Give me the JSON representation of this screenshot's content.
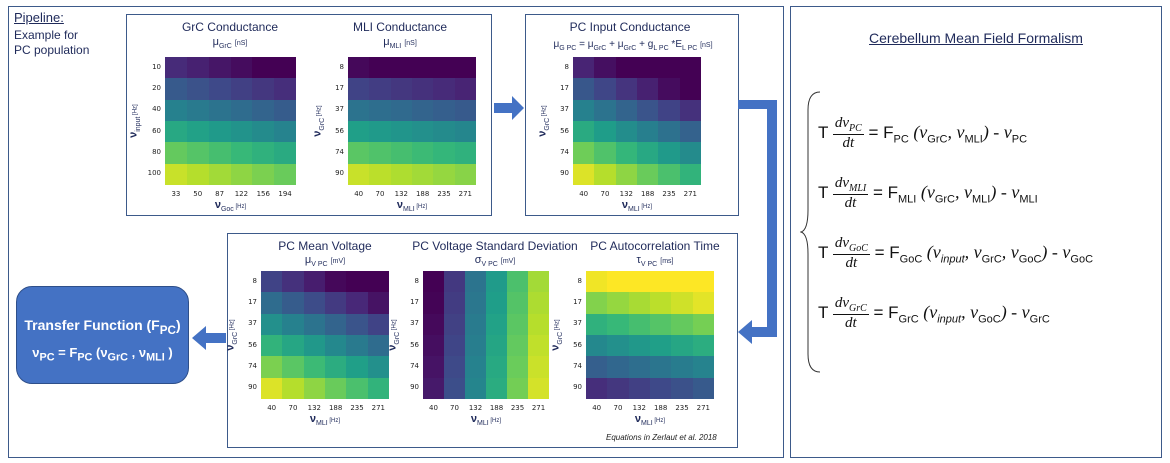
{
  "pipeline": {
    "title": "Pipeline:",
    "sub1": "Example for",
    "sub2": "PC population"
  },
  "grc": {
    "title": "GrC Conductance",
    "mu": "μ",
    "mu_sub": "GrC",
    "unit": "[nS]",
    "yticks": [
      "10",
      "20",
      "40",
      "60",
      "80",
      "100"
    ],
    "xticks": [
      "33",
      "50",
      "87",
      "122",
      "156",
      "194"
    ],
    "ylabel_sym": "ν",
    "ylabel_sub": "input",
    "ylabel_unit": "[Hz]",
    "xlabel_sym": "ν",
    "xlabel_sub": "Goc",
    "xlabel_unit": "[Hz]"
  },
  "mli": {
    "title": "MLI Conductance",
    "mu": "μ",
    "mu_sub": "MLI",
    "unit": "[nS]",
    "yticks": [
      "8",
      "17",
      "37",
      "56",
      "74",
      "90"
    ],
    "xticks": [
      "40",
      "70",
      "132",
      "188",
      "235",
      "271"
    ],
    "ylabel_sym": "ν",
    "ylabel_sub": "GrC",
    "ylabel_unit": "[Hz]",
    "xlabel_sym": "ν",
    "xlabel_sub": "MLI",
    "xlabel_unit": "[Hz]"
  },
  "pcinput": {
    "title": "PC Input Conductance",
    "formula": "μG PC = μGrC + μGrC + gL PC *EL PC",
    "f_a": "μ",
    "f_a_sub": "G PC",
    "f_eq": " = ",
    "f_b": "μ",
    "f_b_sub": "GrC",
    "f_plus1": " + ",
    "f_c": "μ",
    "f_c_sub": "GrC",
    "f_plus2": " + ",
    "f_d": "g",
    "f_d_sub": "L PC",
    "f_star": " *E",
    "f_e_sub": "L PC",
    "unit": "[nS]",
    "yticks": [
      "8",
      "17",
      "37",
      "56",
      "74",
      "90"
    ],
    "xticks": [
      "40",
      "70",
      "132",
      "188",
      "235",
      "271"
    ],
    "ylabel_sym": "ν",
    "ylabel_sub": "GrC",
    "ylabel_unit": "[Hz]",
    "xlabel_sym": "ν",
    "xlabel_sub": "MLI",
    "xlabel_unit": "[Hz]"
  },
  "meanv": {
    "title": "PC Mean Voltage",
    "mu": "μ",
    "mu_sub": "V PC",
    "unit": "[mV]",
    "yticks": [
      "8",
      "17",
      "37",
      "56",
      "74",
      "90"
    ],
    "xticks": [
      "40",
      "70",
      "132",
      "188",
      "235",
      "271"
    ],
    "ylabel_sym": "ν",
    "ylabel_sub": "GrC",
    "ylabel_unit": "[Hz]",
    "xlabel_sym": "ν",
    "xlabel_sub": "MLI",
    "xlabel_unit": "[Hz]"
  },
  "sdv": {
    "title": "PC Voltage Standard Deviation",
    "mu": "σ",
    "mu_sub": "V PC",
    "unit": "[mV]",
    "yticks": [
      "8",
      "17",
      "37",
      "56",
      "74",
      "90"
    ],
    "xticks": [
      "40",
      "70",
      "132",
      "188",
      "235",
      "271"
    ],
    "ylabel_sym": "ν",
    "ylabel_sub": "GrC",
    "ylabel_unit": "[Hz]",
    "xlabel_sym": "ν",
    "xlabel_sub": "MLI",
    "xlabel_unit": "[Hz]"
  },
  "tau": {
    "title": "PC Autocorrelation Time",
    "mu": "τ",
    "mu_sub": "V PC",
    "unit": "[ms]",
    "yticks": [
      "8",
      "17",
      "37",
      "56",
      "74",
      "90"
    ],
    "xticks": [
      "40",
      "70",
      "132",
      "188",
      "235",
      "271"
    ],
    "ylabel_sym": "ν",
    "ylabel_sub": "GrC",
    "ylabel_unit": "[Hz]",
    "xlabel_sym": "ν",
    "xlabel_sub": "MLI",
    "xlabel_unit": "[Hz]"
  },
  "note": "Equations in Zerlaut et al. 2018",
  "transfer": {
    "title": "Transfer Function (F",
    "title_sub": "PC",
    "title_end": ")",
    "eq_lhs": "ν",
    "eq_lhs_sub": "PC",
    "eq_mid": " = F",
    "eq_mid_sub": "PC",
    "eq_args": " (ν",
    "eq_a1_sub": "GrC",
    "eq_sep": " , ν",
    "eq_a2_sub": "MLI",
    "eq_end": " )"
  },
  "meanfield": {
    "title": "Cerebellum Mean Field Formalism",
    "eqs": [
      {
        "T": "T",
        "num": "dν",
        "num_sub": "PC",
        "den": "dt",
        "rhs": " = F",
        "rhs_sub": "PC",
        "args": " (ν",
        "a1": "GrC",
        "sep": ", ν",
        "a2": "MLI",
        "close": ") - ν",
        "last": "PC",
        "a0": ""
      },
      {
        "T": "T",
        "num": "dν",
        "num_sub": "MLI",
        "den": "dt",
        "rhs": " = F",
        "rhs_sub": "MLI",
        "args": " (ν",
        "a1": "GrC",
        "sep": ", ν",
        "a2": "MLI",
        "close": ") - ν",
        "last": "MLI",
        "a0": ""
      },
      {
        "T": "T",
        "num": "dν",
        "num_sub": "GoC",
        "den": "dt",
        "rhs": " = F",
        "rhs_sub": "GoC",
        "args": " (ν",
        "a0": "input",
        "a1": "GrC",
        "sep": ", ν",
        "a2": "GoC",
        "close": ") - ν",
        "last": "GoC"
      },
      {
        "T": "T",
        "num": "dν",
        "num_sub": "GrC",
        "den": "dt",
        "rhs": " = F",
        "rhs_sub": "GrC",
        "args": " (ν",
        "a0": "input",
        "a1": "",
        "sep": ", ν",
        "a2": "GoC",
        "close": ") - ν",
        "last": "GrC"
      }
    ]
  },
  "colors": {
    "border": "#3d5a8a",
    "arrow": "#4472c4",
    "tf_fill": "#4472c4"
  }
}
